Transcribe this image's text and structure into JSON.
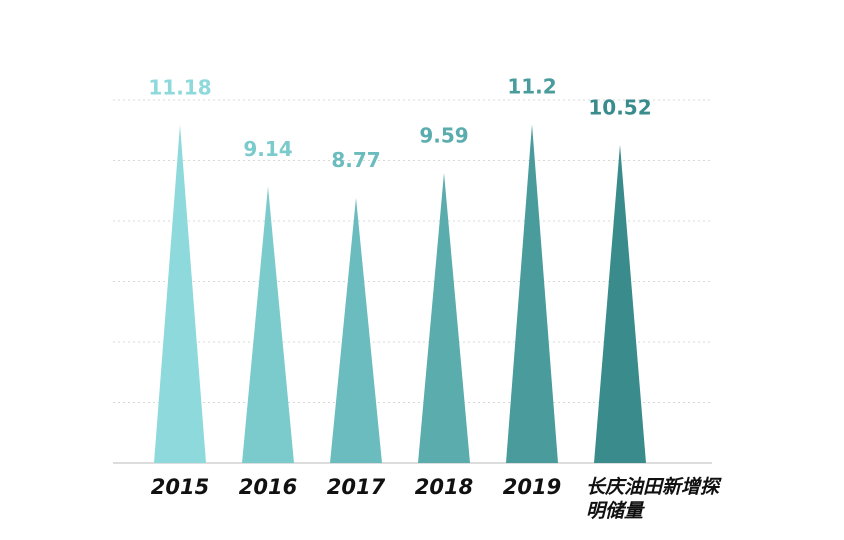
{
  "chart_data": {
    "type": "triangle-bar",
    "categories": [
      "2015",
      "2016",
      "2017",
      "2018",
      "2019",
      "长庆油田新增探明储量"
    ],
    "values": [
      11.18,
      9.14,
      8.77,
      9.59,
      11.2,
      10.52
    ],
    "colors": [
      "#8ed9dc",
      "#7ccbcc",
      "#6bbcbe",
      "#5aacad",
      "#4a9b9c",
      "#3a8b8c"
    ],
    "ylim": [
      0,
      12
    ],
    "yticks": [
      0,
      2,
      4,
      6,
      8,
      10,
      12
    ],
    "grid": true
  }
}
